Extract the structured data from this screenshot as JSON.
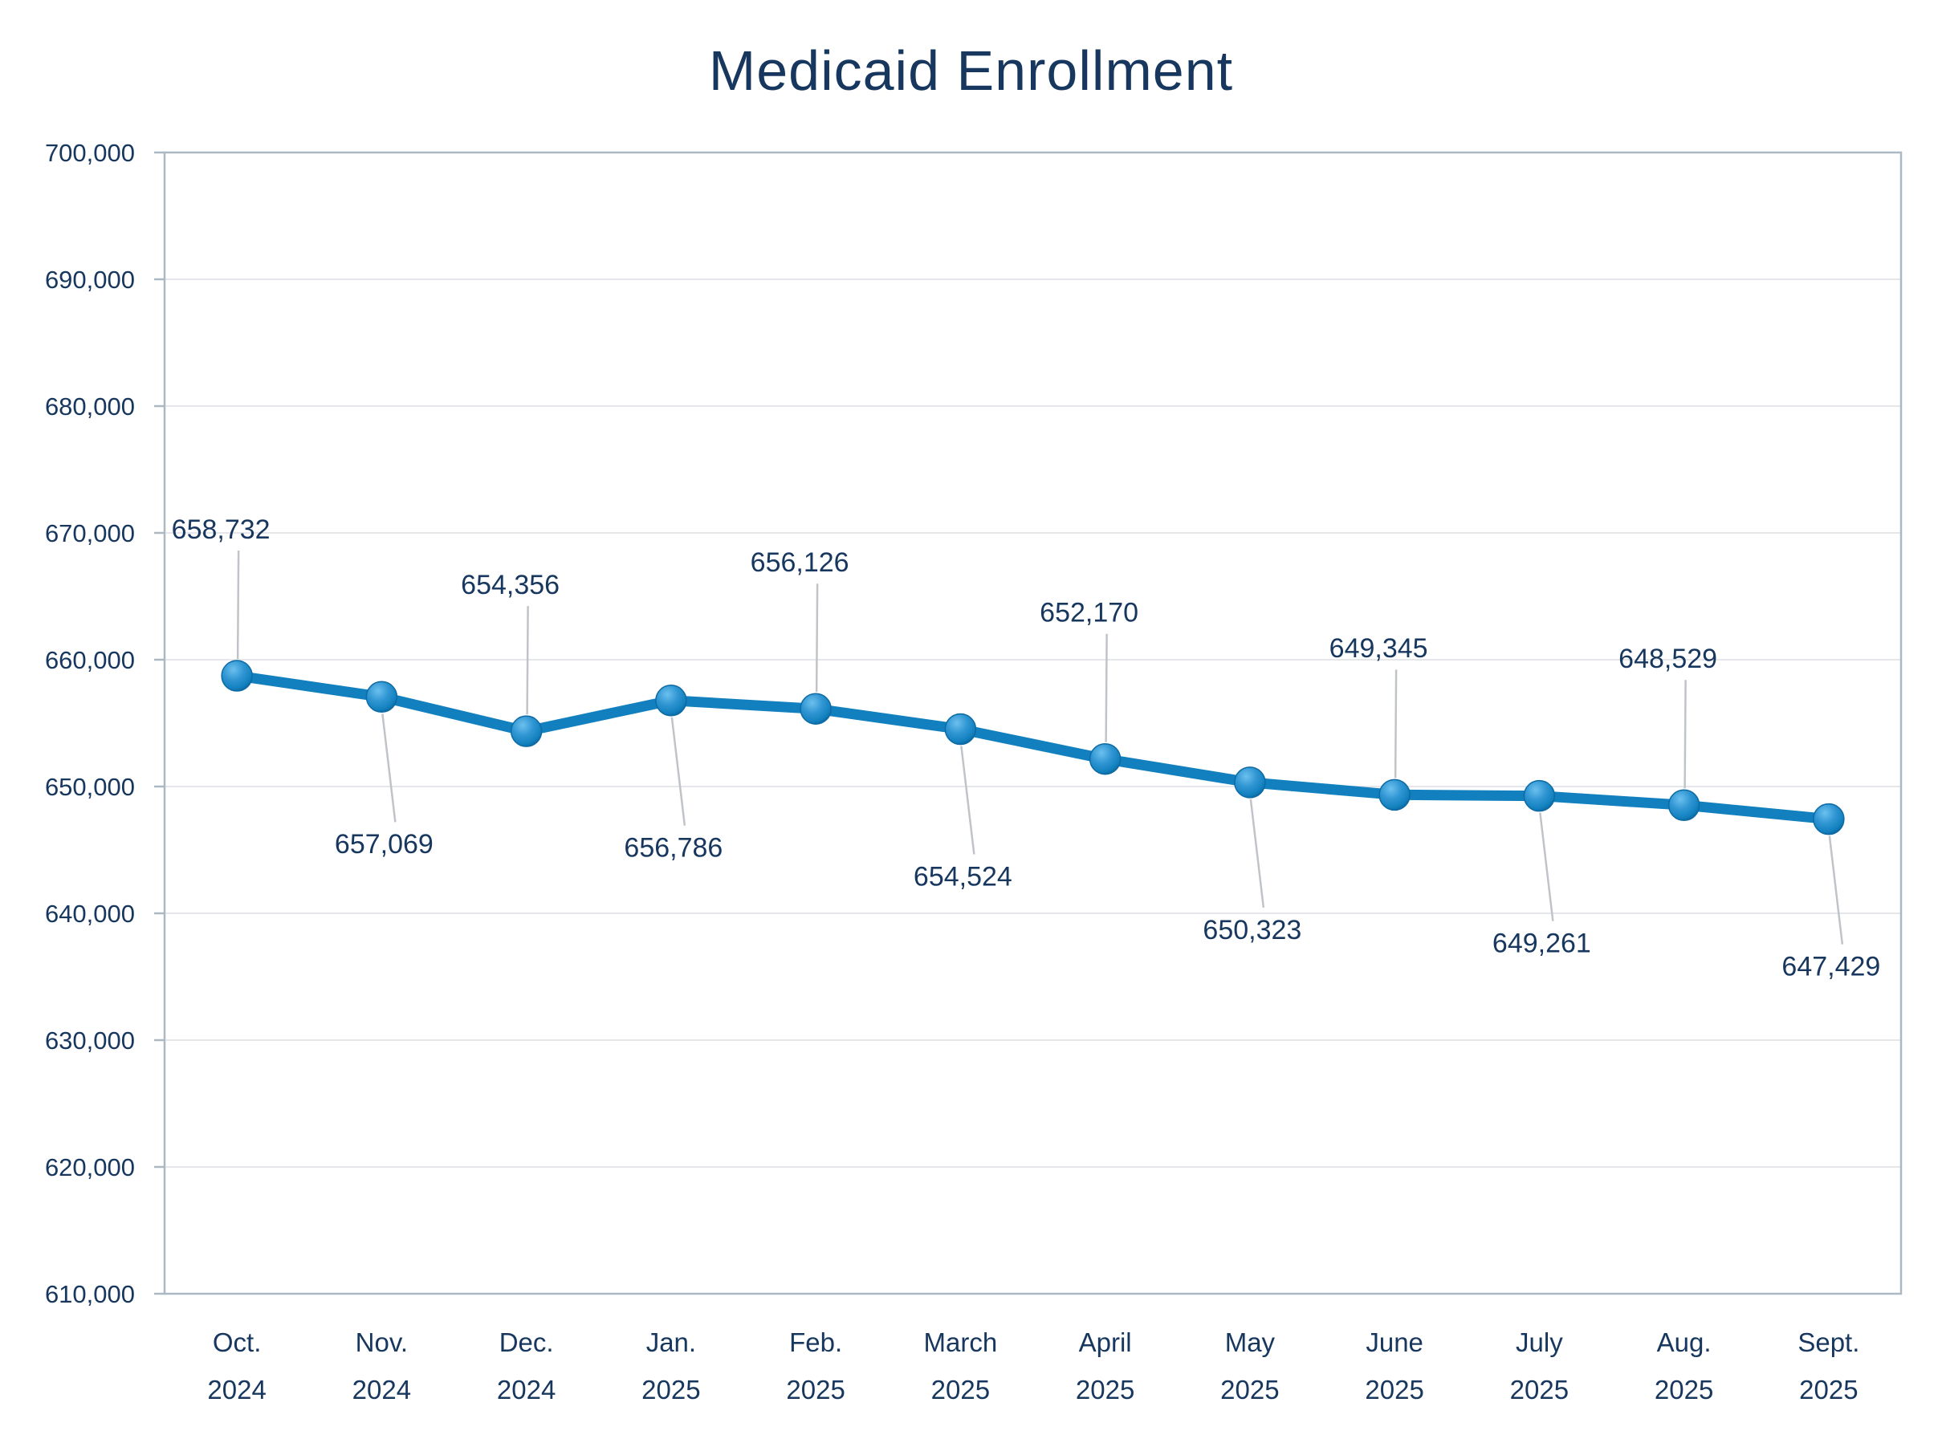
{
  "chart_data": {
    "type": "line",
    "title": "Medicaid Enrollment",
    "categories": [
      {
        "month": "Oct.",
        "year": "2024"
      },
      {
        "month": "Nov.",
        "year": "2024"
      },
      {
        "month": "Dec.",
        "year": "2024"
      },
      {
        "month": "Jan.",
        "year": "2025"
      },
      {
        "month": "Feb.",
        "year": "2025"
      },
      {
        "month": "March",
        "year": "2025"
      },
      {
        "month": "April",
        "year": "2025"
      },
      {
        "month": "May",
        "year": "2025"
      },
      {
        "month": "June",
        "year": "2025"
      },
      {
        "month": "July",
        "year": "2025"
      },
      {
        "month": "Aug.",
        "year": "2025"
      },
      {
        "month": "Sept.",
        "year": "2025"
      }
    ],
    "values": [
      658732,
      657069,
      654356,
      656786,
      656126,
      654524,
      652170,
      650323,
      649345,
      649261,
      648529,
      647429
    ],
    "data_labels": [
      "658,732",
      "657,069",
      "654,356",
      "656,786",
      "656,126",
      "654,524",
      "652,170",
      "650,323",
      "649,345",
      "649,261",
      "648,529",
      "647,429"
    ],
    "label_placement": [
      "above",
      "below",
      "above",
      "below",
      "above",
      "below",
      "above",
      "below",
      "above",
      "below",
      "above",
      "below"
    ],
    "ylim": [
      610000,
      700000
    ],
    "ytick_step": 10000,
    "ytick_labels": [
      "610,000",
      "620,000",
      "630,000",
      "640,000",
      "650,000",
      "660,000",
      "670,000",
      "680,000",
      "690,000",
      "700,000"
    ],
    "grid": true,
    "legend": "none",
    "xlabel": "",
    "ylabel": "",
    "colors": {
      "line": "#1280BE",
      "marker_highlight": "#6CC0EE",
      "marker_mid": "#2F95D2",
      "marker_dark": "#0A5B8E",
      "marker_edge": "#0D6AA4",
      "text": "#17375E",
      "gridline": "#E5E7EA",
      "plot_border": "#ACB9C2",
      "leader_line": "#C0C4C8",
      "background": "#FFFFFF"
    }
  }
}
